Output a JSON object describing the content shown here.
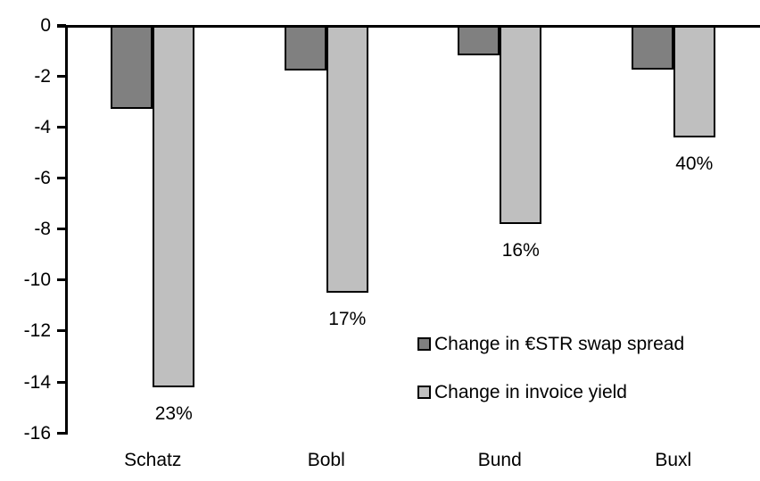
{
  "chart_data": {
    "type": "bar",
    "title": "",
    "xlabel": "",
    "ylabel": "",
    "categories": [
      "Schatz",
      "Bobl",
      "Bund",
      "Buxl"
    ],
    "series": [
      {
        "name": "Change in €STR swap spread",
        "color": "#808080",
        "values": [
          -3.3,
          -1.8,
          -1.2,
          -1.75
        ]
      },
      {
        "name": "Change in invoice yield",
        "color": "#BFBFBF",
        "values": [
          -14.2,
          -10.5,
          -7.8,
          -4.4
        ],
        "data_labels": [
          "23%",
          "17%",
          "16%",
          "40%"
        ]
      }
    ],
    "ylim": [
      -16,
      0
    ],
    "yticks": [
      "0",
      "-2",
      "-4",
      "-6",
      "-8",
      "-10",
      "-12",
      "-14",
      "-16"
    ],
    "grid": false,
    "legend_position": "inside-right",
    "axis_color": "#000000",
    "bar_border_color": "#000000",
    "background_color": "#FFFFFF"
  }
}
